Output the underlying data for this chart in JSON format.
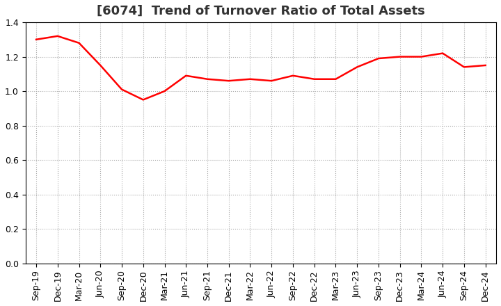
{
  "title": "[6074]  Trend of Turnover Ratio of Total Assets",
  "x_labels": [
    "Sep-19",
    "Dec-19",
    "Mar-20",
    "Jun-20",
    "Sep-20",
    "Dec-20",
    "Mar-21",
    "Jun-21",
    "Sep-21",
    "Dec-21",
    "Mar-22",
    "Jun-22",
    "Sep-22",
    "Dec-22",
    "Mar-23",
    "Jun-23",
    "Sep-23",
    "Dec-23",
    "Mar-24",
    "Jun-24",
    "Sep-24",
    "Dec-24"
  ],
  "y_values": [
    1.3,
    1.32,
    1.28,
    1.15,
    1.01,
    0.95,
    1.0,
    1.09,
    1.07,
    1.06,
    1.07,
    1.06,
    1.09,
    1.07,
    1.07,
    1.14,
    1.19,
    1.2,
    1.2,
    1.22,
    1.14,
    1.15
  ],
  "line_color": "#FF0000",
  "line_width": 1.8,
  "ylim": [
    0.0,
    1.4
  ],
  "yticks": [
    0.0,
    0.2,
    0.4,
    0.6,
    0.8,
    1.0,
    1.2,
    1.4
  ],
  "grid_color": "#aaaaaa",
  "grid_style": "dotted",
  "bg_color": "#ffffff",
  "title_fontsize": 13,
  "title_color": "#333333",
  "tick_fontsize": 9,
  "label_rotation": 90
}
